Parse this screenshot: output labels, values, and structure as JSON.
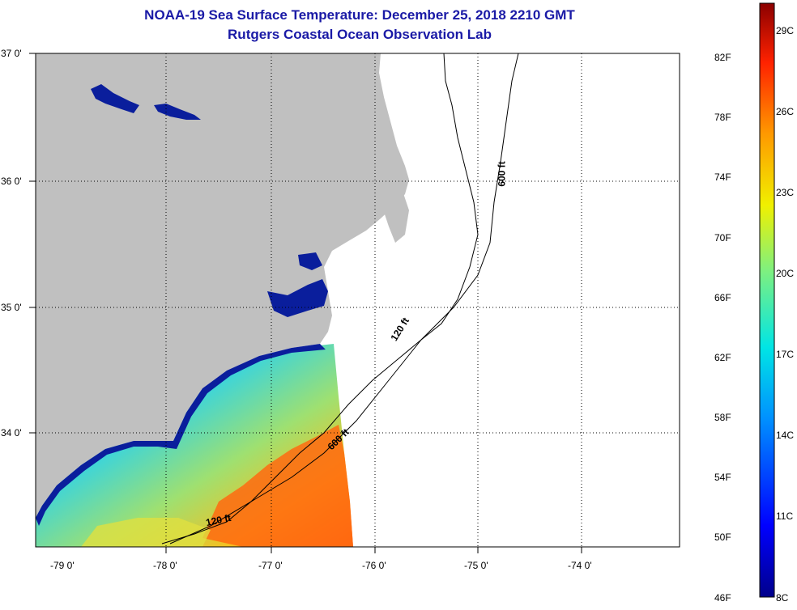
{
  "title": "NOAA-19 Sea Surface Temperature:  December 25, 2018 2210 GMT",
  "subtitle": "Rutgers Coastal Ocean Observation Lab",
  "lat_labels": [
    "37 0'",
    "36 0'",
    "35 0'",
    "34 0'"
  ],
  "lon_labels": [
    "-79 0'",
    "-78 0'",
    "-77 0'",
    "-76 0'",
    "-75 0'",
    "-74 0'"
  ],
  "contour_labels": [
    "600 ft",
    "120 ft",
    "600 ft",
    "120 ft"
  ],
  "colorbar": {
    "fahrenheit": [
      "82F",
      "78F",
      "74F",
      "70F",
      "66F",
      "62F",
      "58F",
      "54F",
      "50F",
      "46F"
    ],
    "celsius": [
      "29C",
      "26C",
      "23C",
      "20C",
      "17C",
      "14C",
      "11C",
      "8C"
    ]
  },
  "colors": {
    "land": "#c0c0c0",
    "title": "#1a1aa6",
    "inland_water": "#0a1e9c"
  }
}
